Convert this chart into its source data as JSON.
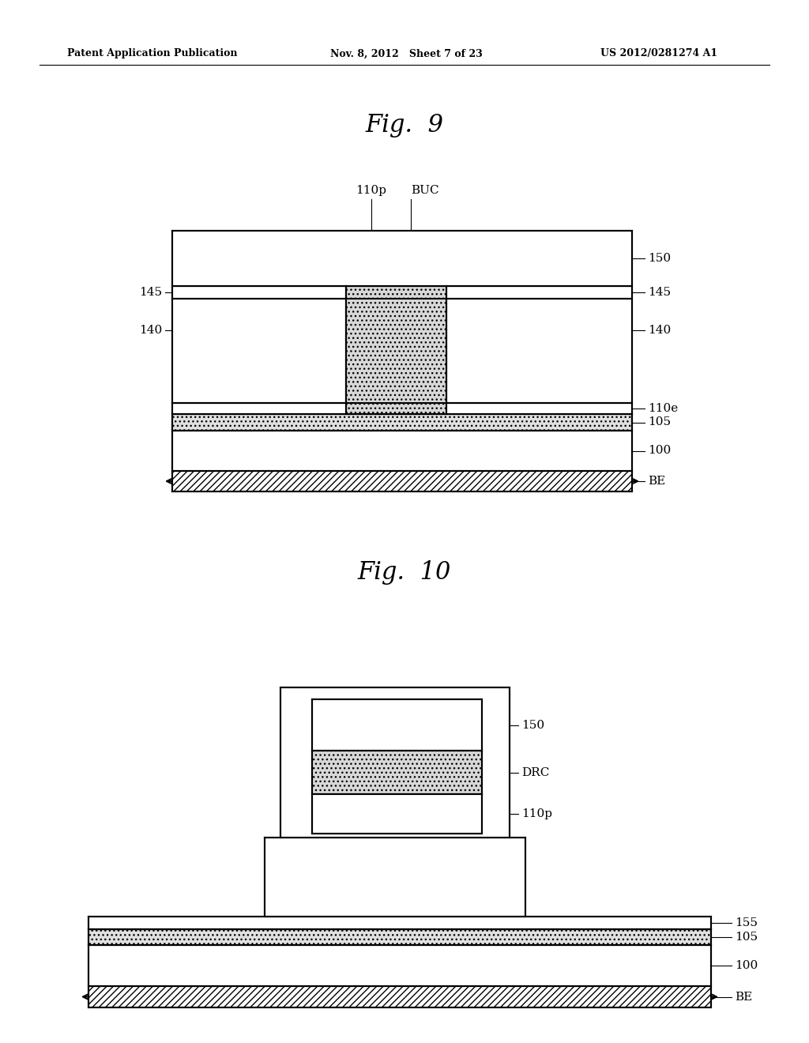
{
  "bg_color": "#ffffff",
  "fig9_title": "Fig.  9",
  "fig10_title": "Fig.  10",
  "header_left": "Patent Application Publication",
  "header_mid": "Nov. 8, 2012   Sheet 7 of 23",
  "header_right": "US 2012/0281274 A1"
}
